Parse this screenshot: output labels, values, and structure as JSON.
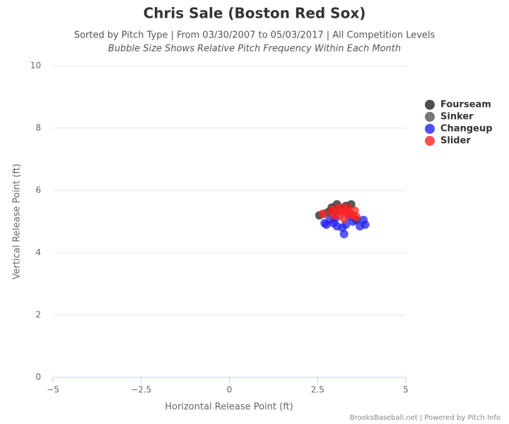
{
  "chart_data": {
    "type": "scatter",
    "title": "Chris Sale (Boston Red Sox)",
    "subtitle": "Sorted by Pitch Type | From 03/30/2007 to 05/03/2017 | All Competition Levels",
    "note": "Bubble Size Shows Relative Pitch Frequency Within Each Month",
    "x_label": "Horizontal Release Point (ft)",
    "y_label": "Vertical Release Point (ft)",
    "credit": "BrooksBaseball.net | Powered by Pitch Info",
    "xlim": [
      -5,
      5
    ],
    "xticks": [
      {
        "value": -5,
        "label": "−5"
      },
      {
        "value": -2.5,
        "label": "−2.5"
      },
      0,
      2.5,
      5
    ],
    "ylim": [
      0,
      10
    ],
    "yticks": [
      0,
      2,
      4,
      6,
      8,
      10
    ],
    "grid": true,
    "legend": "right",
    "series": [
      {
        "name": "Fourseam",
        "color": "#222222",
        "x": [
          2.55,
          2.9,
          3.05,
          3.3,
          3.45,
          3.2,
          2.8,
          3.6,
          3.0
        ],
        "values": [
          5.2,
          5.45,
          5.55,
          5.5,
          5.55,
          5.4,
          5.3,
          5.05,
          5.3
        ]
      },
      {
        "name": "Sinker",
        "color": "#555555",
        "x": [
          2.7,
          3.1,
          3.4
        ],
        "values": [
          5.25,
          5.35,
          5.3
        ]
      },
      {
        "name": "Changeup",
        "color": "#2222ee",
        "x": [
          2.7,
          2.75,
          2.95,
          3.05,
          3.2,
          3.25,
          3.3,
          3.5,
          3.7,
          3.85,
          3.8,
          3.0,
          3.4,
          2.85
        ],
        "values": [
          4.95,
          4.9,
          4.95,
          4.85,
          4.8,
          4.6,
          4.9,
          5.0,
          4.85,
          4.9,
          5.05,
          5.1,
          5.15,
          5.05
        ]
      },
      {
        "name": "Slider",
        "color": "#ff2222",
        "x": [
          2.65,
          2.9,
          3.0,
          3.1,
          3.2,
          3.3,
          3.4,
          3.5,
          3.55,
          3.6,
          3.15,
          3.25,
          2.95,
          3.35
        ],
        "values": [
          5.25,
          5.35,
          5.4,
          5.2,
          5.3,
          5.35,
          5.25,
          5.2,
          5.35,
          5.15,
          5.45,
          5.1,
          5.2,
          5.45
        ]
      }
    ]
  }
}
